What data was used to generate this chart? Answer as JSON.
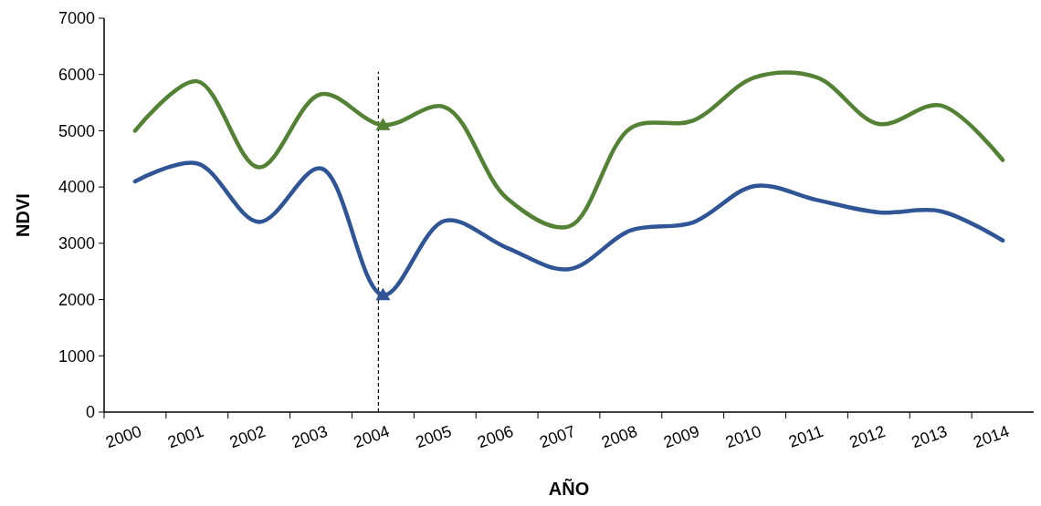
{
  "chart_data": {
    "type": "line",
    "xlabel": "AÑO",
    "ylabel": "NDVI",
    "categories": [
      "2000",
      "2001",
      "2002",
      "2003",
      "2004",
      "2005",
      "2006",
      "2007",
      "2008",
      "2009",
      "2010",
      "2011",
      "2012",
      "2013",
      "2014"
    ],
    "series": [
      {
        "color": "#548235",
        "values": [
          5000,
          5880,
          4350,
          5650,
          5100,
          5420,
          3800,
          3300,
          5050,
          5180,
          5950,
          5950,
          5120,
          5450,
          4480
        ]
      },
      {
        "color": "#2f5597",
        "values": [
          4100,
          4420,
          3380,
          4330,
          2080,
          3400,
          2920,
          2540,
          3230,
          3370,
          4020,
          3770,
          3550,
          3570,
          3050
        ]
      },
      {
        "type": "scatter",
        "color": "#548235",
        "values": [
          null,
          null,
          null,
          null,
          5100,
          null,
          null,
          null,
          null,
          null,
          null,
          null,
          null,
          null,
          null
        ],
        "marker": "triangle"
      },
      {
        "type": "scatter",
        "color": "#2f5597",
        "values": [
          null,
          null,
          null,
          null,
          2080,
          null,
          null,
          null,
          null,
          null,
          null,
          null,
          null,
          null,
          null
        ],
        "marker": "triangle"
      }
    ],
    "ylim": [
      0,
      7000
    ],
    "yticks": [
      0,
      1000,
      2000,
      3000,
      4000,
      5000,
      6000,
      7000
    ],
    "ref_lines": [
      {
        "axis": "x",
        "value": "2004",
        "line_style": "dashed",
        "color": "#000000"
      }
    ],
    "grid": false
  }
}
